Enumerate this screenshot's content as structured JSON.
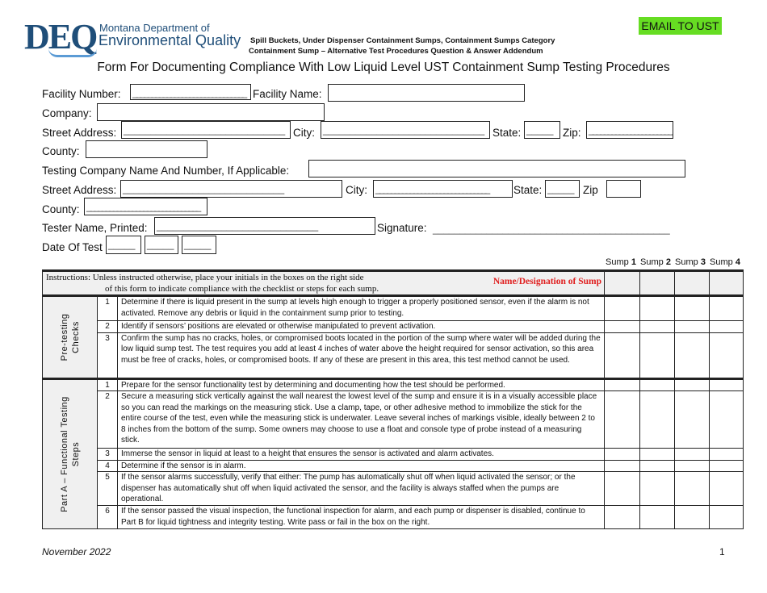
{
  "header": {
    "logo_text": "DEQ",
    "logo_line1": "Montana Department of",
    "logo_line2": "Environmental Quality",
    "subtitle1": "Spill Buckets, Under Dispenser Containment Sumps, Containment Sumps Category",
    "subtitle2": "Containment Sump – Alternative Test Procedures Question & Answer Addendum",
    "email_button": "EMAIL TO UST",
    "title": "Form For Documenting Compliance With Low Liquid Level UST Containment Sump Testing Procedures"
  },
  "form": {
    "facility_number": "Facility Number:",
    "facility_name": "Facility Name:",
    "company": "Company:",
    "street_address": "Street Address:",
    "city": "City:",
    "state": "State:",
    "zip": "Zip:",
    "county": "County:",
    "testing_company": "Testing Company Name And Number, If Applicable:",
    "street_address2": "Street Address:",
    "city2": "City:",
    "state2": "State:",
    "zip2": "Zip",
    "county2": "County:",
    "tester_name": "Tester Name, Printed:",
    "signature": "Signature:",
    "date_of_test": "Date Of Test",
    "underscore_long": "______________________________",
    "underscore_short": "_____",
    "signature_line": "____________________________________________"
  },
  "table": {
    "sump_headers": [
      {
        "word": "Sump",
        "num": "1"
      },
      {
        "word": "Sump",
        "num": "2"
      },
      {
        "word": "Sump",
        "num": "3"
      },
      {
        "word": "Sump",
        "num": "4"
      }
    ],
    "instructions_1": "Instructions: Unless instructed otherwise, place your initials in the boxes on the right side",
    "instructions_2": "of this form to indicate compliance with the checklist or steps for each sump.",
    "name_designation": "Name/Designation of Sump",
    "name_color": "#e02020",
    "sections": [
      {
        "label": "Pre-testing Checks",
        "rows": [
          {
            "num": "1",
            "text": "Determine if there is liquid present in the sump at levels high enough to trigger a properly positioned sensor, even if the alarm is not activated. Remove any debris or liquid in the containment sump prior to testing."
          },
          {
            "num": "2",
            "text": "Identify if sensors’ positions are elevated or otherwise manipulated to prevent activation."
          },
          {
            "num": "3",
            "text": "Confirm the sump has no cracks, holes, or compromised boots located in the portion of the sump where water will be added during the low liquid sump test. The test requires you add at least 4 inches of water above the height required for sensor activation, so this area must be free of cracks, holes, or compromised boots. If any of these are present in this area, this test method cannot be used."
          }
        ]
      },
      {
        "label": "Part A – Functional Testing Steps",
        "rows": [
          {
            "num": "1",
            "text": "Prepare for the sensor functionality test by determining and documenting how the test should be performed."
          },
          {
            "num": "2",
            "text": "Secure a measuring stick vertically against the wall nearest the lowest level of the sump and ensure it is in a visually accessible place so you can read the markings on the measuring stick. Use a clamp, tape, or other adhesive method to immobilize the stick for the entire course of the test, even while the measuring stick is underwater. Leave several inches of markings visible, ideally between 2 to 8 inches from the bottom of the sump. Some owners may choose to use a float and console type of probe instead of a measuring stick."
          },
          {
            "num": "3",
            "text": "Immerse the sensor in liquid at least to a height that ensures the sensor is activated and alarm activates."
          },
          {
            "num": "4",
            "text": "Determine if the sensor is in alarm."
          },
          {
            "num": "5",
            "text": "If the sensor alarms successfully, verify that either: The pump has automatically shut off when liquid activated the sensor; or the dispenser has automatically shut off when liquid activated the sensor, and the facility is always staffed when the pumps are operational."
          },
          {
            "num": "6",
            "text": "If the sensor passed the visual inspection, the functional inspection for alarm, and each pump or dispenser is disabled, continue to Part B for liquid tightness and integrity testing. Write pass or fail in the box on the right."
          }
        ]
      }
    ]
  },
  "footer": {
    "date": "November 2022",
    "page": "1"
  }
}
